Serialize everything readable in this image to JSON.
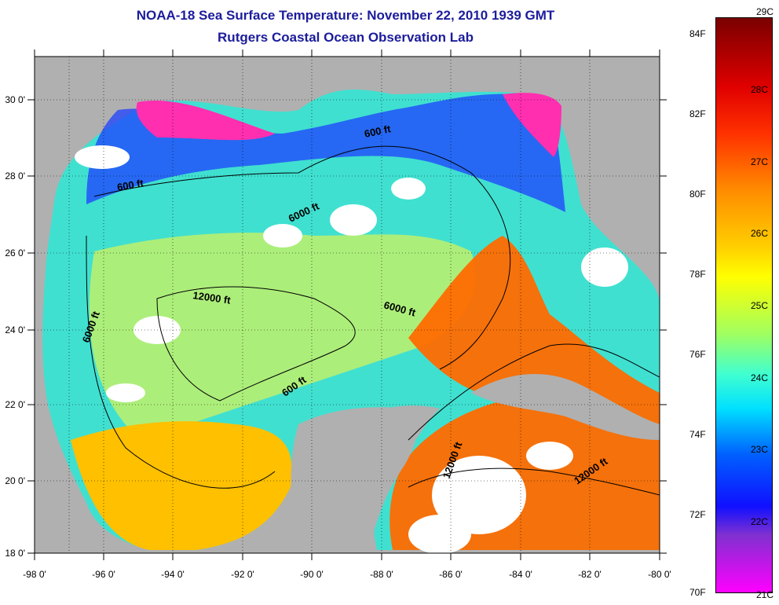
{
  "title": "NOAA-18 Sea Surface Temperature:  November 22, 2010 1939 GMT",
  "subtitle": "Rutgers Coastal Ocean Observation Lab",
  "map": {
    "lon_range": [
      -98,
      -80
    ],
    "lat_range": [
      18,
      31
    ],
    "lon_ticks": [
      "-98 0'",
      "-96 0'",
      "-94 0'",
      "-92 0'",
      "-90 0'",
      "-88 0'",
      "-86 0'",
      "-84 0'",
      "-82 0'",
      "-80 0'"
    ],
    "lat_ticks": [
      "18 0'",
      "20 0'",
      "22 0'",
      "24 0'",
      "26 0'",
      "28 0'",
      "30 0'"
    ],
    "gridlines": "dotted",
    "land_color": "#b0b0b0",
    "cloud_color": "#ffffff",
    "contour_labels": [
      "600 ft",
      "600 ft",
      "6000 ft",
      "12000 ft",
      "6000 ft",
      "6000 ft",
      "600 ft",
      "12000 ft",
      "12000 ft"
    ]
  },
  "colorbar": {
    "celsius_ticks": [
      "29C",
      "28C",
      "27C",
      "26C",
      "25C",
      "24C",
      "23C",
      "22C",
      "21C"
    ],
    "fahrenheit_ticks": [
      "84F",
      "82F",
      "80F",
      "78F",
      "76F",
      "74F",
      "72F",
      "70F"
    ],
    "range_c": [
      21,
      29
    ],
    "colors": [
      "#8b0000",
      "#ff0000",
      "#ff8c00",
      "#ffff00",
      "#7fff7f",
      "#00ffff",
      "#0000ff",
      "#8a2be2",
      "#ff00ff"
    ]
  }
}
